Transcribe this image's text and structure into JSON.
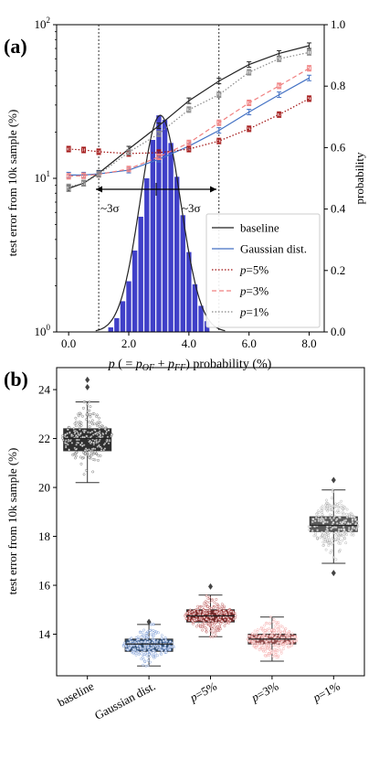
{
  "panel_a": {
    "panel_label": "(a)",
    "y_label_left": "test error from 10k sample (%)",
    "y_label_right": "probability",
    "x_label": "p ( = pOF + pFF) probability (%)",
    "x_label_parts": {
      "p": "p",
      "open": " ( = ",
      "p_of": "p",
      "of_sub": "OF",
      "plus": " + ",
      "p_ff": "p",
      "ff_sub": "FF",
      "close": ") probability (%)"
    },
    "annotation_left": "~3σ",
    "annotation_right": "~3σ",
    "legend": [
      {
        "label": "baseline",
        "style": "solid",
        "color": "#222222"
      },
      {
        "label": "Gaussian dist.",
        "style": "solid",
        "color": "#4472c4"
      },
      {
        "label": "p=5%",
        "style": "dotted",
        "color": "#a01010"
      },
      {
        "label": "p=3%",
        "style": "dashed",
        "color": "#f08080"
      },
      {
        "label": "p=1%",
        "style": "dotted",
        "color": "#888888"
      }
    ],
    "x_ticks": [
      "0.0",
      "2.0",
      "4.0",
      "6.0",
      "8.0"
    ],
    "y_ticks_left": [
      "10^0",
      "10^1",
      "10^2"
    ],
    "y_ticks_left_parts": [
      {
        "base": "10",
        "exp": "0"
      },
      {
        "base": "10",
        "exp": "1"
      },
      {
        "base": "10",
        "exp": "2"
      }
    ],
    "y_ticks_right": [
      "0.0",
      "0.2",
      "0.4",
      "0.6",
      "0.8",
      "1.0"
    ]
  },
  "panel_b": {
    "panel_label": "(b)",
    "y_label": "test error from 10k sample (%)",
    "y_ticks": [
      "14",
      "16",
      "18",
      "20",
      "22",
      "24"
    ],
    "categories": [
      "baseline",
      "Gaussian dist.",
      "p=5%",
      "p=3%",
      "p=1%"
    ]
  },
  "colors": {
    "baseline": "#222222",
    "gaussian": "#4472c4",
    "p5": "#a01010",
    "p3": "#f08080",
    "p1": "#888888",
    "hist": "#4040c8"
  },
  "chart_data": [
    {
      "type": "line",
      "y_scale": "log",
      "xlim": [
        -0.4,
        8.5
      ],
      "ylim": [
        1,
        100
      ],
      "y2lim": [
        0,
        1.0
      ],
      "vlines": [
        1.0,
        5.0
      ],
      "series": [
        {
          "name": "baseline",
          "x": [
            0,
            0.5,
            1,
            2,
            3,
            4,
            5,
            6,
            7,
            8
          ],
          "y": [
            8.6,
            9.3,
            10.8,
            15.5,
            22,
            32,
            43,
            55,
            65,
            73
          ]
        },
        {
          "name": "Gaussian dist.",
          "x": [
            0,
            0.5,
            1,
            2,
            3,
            4,
            5,
            6,
            7,
            8
          ],
          "y": [
            10.5,
            10.5,
            10.7,
            11.3,
            13.3,
            16.2,
            20.5,
            27,
            35,
            45
          ]
        },
        {
          "name": "p=5%",
          "x": [
            0,
            0.5,
            1,
            2,
            3,
            4,
            5,
            6,
            7,
            8
          ],
          "y": [
            15.5,
            15.3,
            14.9,
            14.5,
            14.7,
            15.5,
            17.5,
            21,
            26,
            33
          ]
        },
        {
          "name": "p=3%",
          "x": [
            0,
            0.5,
            1,
            2,
            3,
            4,
            5,
            6,
            7,
            8
          ],
          "y": [
            10.3,
            10.4,
            10.6,
            11.5,
            13.8,
            17,
            23,
            31,
            40,
            52
          ]
        },
        {
          "name": "p=1%",
          "x": [
            0,
            0.5,
            1,
            2,
            3,
            4,
            5,
            6,
            7,
            8
          ],
          "y": [
            8.8,
            9.3,
            10.6,
            14.8,
            19.5,
            28,
            35,
            49,
            60,
            66
          ]
        }
      ],
      "histogram": {
        "bin_centers": [
          1.4,
          1.6,
          1.8,
          2.0,
          2.2,
          2.4,
          2.6,
          2.8,
          3.0,
          3.2,
          3.4,
          3.6,
          3.8,
          4.0,
          4.2,
          4.4,
          4.6
        ],
        "probability": [
          0.015,
          0.045,
          0.1,
          0.165,
          0.265,
          0.375,
          0.5,
          0.625,
          0.705,
          0.69,
          0.615,
          0.505,
          0.38,
          0.26,
          0.155,
          0.085,
          0.035
        ]
      },
      "gaussian_curve": {
        "mean": 3.05,
        "sigma": 0.67,
        "peak": 0.705
      }
    },
    {
      "type": "box",
      "categories": [
        "baseline",
        "Gaussian dist.",
        "p=5%",
        "p=3%",
        "p=1%"
      ],
      "ylim": [
        12.3,
        24.9
      ],
      "boxes": [
        {
          "name": "baseline",
          "whisker_low": 20.2,
          "q1": 21.5,
          "median": 22.0,
          "q3": 22.4,
          "whisker_high": 23.5,
          "outliers": [
            24.4,
            24.1
          ],
          "center": 22.0,
          "spread": 0.55
        },
        {
          "name": "Gaussian dist.",
          "whisker_low": 12.7,
          "q1": 13.3,
          "median": 13.6,
          "q3": 13.8,
          "whisker_high": 14.4,
          "outliers": [
            14.5
          ],
          "center": 13.55,
          "spread": 0.3
        },
        {
          "name": "p=5%",
          "whisker_low": 13.9,
          "q1": 14.5,
          "median": 14.75,
          "q3": 15.0,
          "whisker_high": 15.6,
          "outliers": [
            15.95
          ],
          "center": 14.75,
          "spread": 0.33
        },
        {
          "name": "p=3%",
          "whisker_low": 12.9,
          "q1": 13.6,
          "median": 13.8,
          "q3": 14.0,
          "whisker_high": 14.7,
          "outliers": [],
          "center": 13.8,
          "spread": 0.32
        },
        {
          "name": "p=1%",
          "whisker_low": 16.9,
          "q1": 18.2,
          "median": 18.45,
          "q3": 18.8,
          "whisker_high": 19.9,
          "outliers": [
            20.3,
            16.5
          ],
          "center": 18.45,
          "spread": 0.5
        }
      ]
    }
  ]
}
